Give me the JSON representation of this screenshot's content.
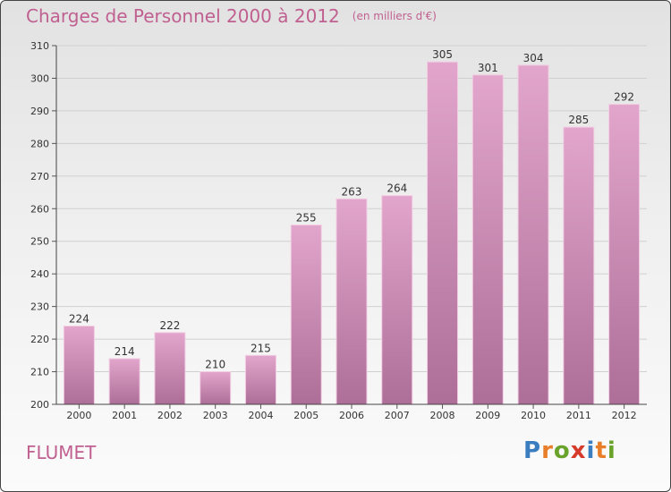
{
  "title": "Charges de Personnel 2000 à 2012",
  "subtitle": "(en milliers d'€)",
  "place": "FLUMET",
  "logo": {
    "letters": [
      "P",
      "r",
      "o",
      "x",
      "i",
      "t",
      "i"
    ],
    "colors": [
      "#3a7ec0",
      "#e87e2a",
      "#6aa32c",
      "#d63a2a",
      "#3a7ec0",
      "#e87e2a",
      "#6aa32c"
    ]
  },
  "chart_data": {
    "type": "bar",
    "categories": [
      "2000",
      "2001",
      "2002",
      "2003",
      "2004",
      "2005",
      "2006",
      "2007",
      "2008",
      "2009",
      "2010",
      "2011",
      "2012"
    ],
    "values": [
      224,
      214,
      222,
      210,
      215,
      255,
      263,
      264,
      305,
      301,
      304,
      285,
      292
    ],
    "data_labels": [
      "224",
      "214",
      "222",
      "210",
      "215",
      "255",
      "263",
      "264",
      "305",
      "301",
      "304",
      "285",
      "292"
    ],
    "ylim": [
      200,
      310
    ],
    "yticks": [
      200,
      210,
      220,
      230,
      240,
      250,
      260,
      270,
      280,
      290,
      300,
      310
    ],
    "grid": true,
    "bar_color_top": "#e2a5cb",
    "bar_color_bottom": "#ad6f98"
  }
}
